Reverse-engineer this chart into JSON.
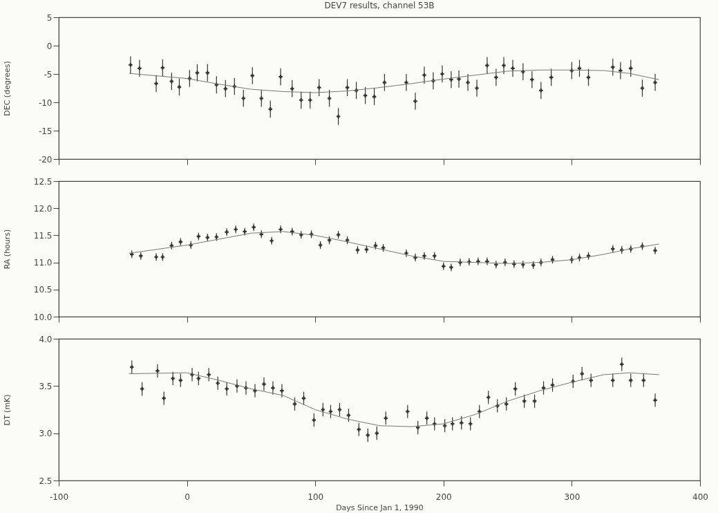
{
  "chart_data": [
    {
      "type": "scatter",
      "title": "DEV7 results, channel 53B",
      "ylabel": "DEC (degrees)",
      "xlim": [
        -100,
        400
      ],
      "xticks": [
        -100,
        0,
        100,
        200,
        300,
        400
      ],
      "ylim": [
        -20,
        5
      ],
      "yticks": [
        -20,
        -15,
        -10,
        -5,
        0,
        5
      ],
      "tick_labels": "y",
      "series": [
        {
          "marker": "cross",
          "color": "#333333",
          "x": [
            -44,
            -37,
            -24,
            -19,
            -12,
            -6,
            2,
            8,
            16,
            23,
            30,
            37,
            44,
            51,
            58,
            65,
            73,
            82,
            89,
            96,
            103,
            111,
            118,
            125,
            132,
            139,
            146,
            154,
            171,
            178,
            185,
            192,
            199,
            206,
            212,
            219,
            226,
            234,
            241,
            247,
            254,
            262,
            269,
            276,
            284,
            300,
            306,
            313,
            332,
            338,
            346,
            355,
            365
          ],
          "values": [
            -3.4,
            -4.0,
            -6.7,
            -3.9,
            -6.3,
            -7.3,
            -5.8,
            -4.8,
            -4.8,
            -6.9,
            -7.6,
            -7.2,
            -9.3,
            -5.3,
            -9.3,
            -11.2,
            -5.5,
            -7.6,
            -9.6,
            -9.6,
            -7.4,
            -9.3,
            -12.5,
            -7.4,
            -7.9,
            -8.8,
            -9.0,
            -6.5,
            -6.5,
            -9.8,
            -5.2,
            -6.2,
            -5.0,
            -6.0,
            -5.9,
            -6.5,
            -7.5,
            -3.5,
            -5.6,
            -3.5,
            -4.0,
            -4.6,
            -6.0,
            -7.9,
            -5.6,
            -4.4,
            -4.0,
            -5.6,
            -3.8,
            -4.4,
            -4.0,
            -7.5,
            -6.5
          ],
          "errors": [
            1.5,
            1.5,
            1.5,
            1.5,
            1.5,
            1.5,
            1.5,
            1.5,
            1.5,
            1.5,
            1.5,
            1.5,
            1.5,
            1.5,
            1.5,
            1.5,
            1.5,
            1.5,
            1.5,
            1.5,
            1.5,
            1.5,
            1.5,
            1.5,
            1.5,
            1.5,
            1.5,
            1.5,
            1.5,
            1.5,
            1.5,
            1.5,
            1.5,
            1.5,
            1.5,
            1.5,
            1.5,
            1.5,
            1.5,
            1.5,
            1.5,
            1.5,
            1.5,
            1.5,
            1.5,
            1.5,
            1.5,
            1.5,
            1.5,
            1.5,
            1.5,
            1.5,
            1.5
          ]
        },
        {
          "type": "line",
          "color": "#777777",
          "x": [
            -45,
            0,
            25,
            50,
            75,
            100,
            125,
            150,
            175,
            200,
            225,
            250,
            275,
            300,
            325,
            345,
            368
          ],
          "values": [
            -4.9,
            -5.8,
            -6.8,
            -7.7,
            -8.1,
            -8.3,
            -8.0,
            -7.4,
            -6.7,
            -5.9,
            -5.2,
            -4.5,
            -4.3,
            -4.3,
            -4.4,
            -4.9,
            -6.0
          ]
        }
      ]
    },
    {
      "type": "scatter",
      "ylabel": "RA (hours)",
      "xlim": [
        -100,
        400
      ],
      "xticks": [
        -100,
        0,
        100,
        200,
        300,
        400
      ],
      "ylim": [
        10,
        12.5
      ],
      "yticks": [
        {
          "value": 10,
          "label": "10.0"
        },
        10.5,
        {
          "value": 11,
          "label": "11.0"
        },
        11.5,
        {
          "value": 12,
          "label": "12.0"
        },
        12.5
      ],
      "tick_labels": "y",
      "series": [
        {
          "marker": "cross",
          "color": "#333333",
          "x": [
            -43,
            -36,
            -24,
            -19,
            -12,
            -5,
            3,
            9,
            16,
            23,
            31,
            38,
            45,
            52,
            58,
            66,
            73,
            82,
            89,
            97,
            104,
            111,
            118,
            125,
            133,
            140,
            147,
            153,
            171,
            178,
            185,
            193,
            200,
            206,
            213,
            220,
            227,
            234,
            241,
            248,
            255,
            262,
            270,
            276,
            285,
            300,
            306,
            313,
            332,
            339,
            346,
            355,
            365
          ],
          "values": [
            11.15,
            11.12,
            11.1,
            11.1,
            11.31,
            11.38,
            11.32,
            11.48,
            11.46,
            11.47,
            11.56,
            11.61,
            11.57,
            11.65,
            11.52,
            11.4,
            11.61,
            11.57,
            11.51,
            11.52,
            11.32,
            11.41,
            11.51,
            11.41,
            11.23,
            11.24,
            11.31,
            11.27,
            11.17,
            11.09,
            11.12,
            11.12,
            10.93,
            10.91,
            11.0,
            11.01,
            11.02,
            11.02,
            10.96,
            11.0,
            10.97,
            10.96,
            10.95,
            11.0,
            11.05,
            11.05,
            11.09,
            11.12,
            11.25,
            11.23,
            11.25,
            11.3,
            11.22
          ],
          "errors": [
            0.07,
            0.07,
            0.07,
            0.07,
            0.07,
            0.07,
            0.07,
            0.07,
            0.07,
            0.07,
            0.07,
            0.07,
            0.07,
            0.07,
            0.07,
            0.07,
            0.07,
            0.07,
            0.07,
            0.07,
            0.07,
            0.07,
            0.07,
            0.07,
            0.07,
            0.07,
            0.07,
            0.07,
            0.07,
            0.07,
            0.07,
            0.07,
            0.07,
            0.07,
            0.07,
            0.07,
            0.07,
            0.07,
            0.07,
            0.07,
            0.07,
            0.07,
            0.07,
            0.07,
            0.07,
            0.07,
            0.07,
            0.07,
            0.07,
            0.07,
            0.07,
            0.07,
            0.07
          ]
        },
        {
          "type": "line",
          "color": "#777777",
          "x": [
            -45,
            0,
            25,
            50,
            75,
            100,
            125,
            150,
            175,
            200,
            225,
            250,
            275,
            300,
            325,
            345,
            368
          ],
          "values": [
            11.17,
            11.32,
            11.43,
            11.54,
            11.57,
            11.5,
            11.38,
            11.25,
            11.12,
            11.02,
            11.0,
            10.98,
            11.0,
            11.05,
            11.15,
            11.25,
            11.34
          ]
        }
      ]
    },
    {
      "type": "scatter",
      "xlabel": "Days Since Jan 1, 1990",
      "ylabel": "DT (mK)",
      "xlim": [
        -100,
        400
      ],
      "xticks": [
        -100,
        0,
        100,
        200,
        300,
        400
      ],
      "ylim": [
        2.5,
        4
      ],
      "yticks": [
        2.5,
        {
          "value": 3,
          "label": "3.0"
        },
        3.5,
        {
          "value": 4,
          "label": "4.0"
        }
      ],
      "series": [
        {
          "marker": "cross",
          "color": "#333333",
          "x": [
            -43,
            -35,
            -23,
            -18,
            -11,
            -5,
            4,
            9,
            17,
            24,
            31,
            39,
            46,
            53,
            60,
            67,
            74,
            84,
            91,
            99,
            106,
            112,
            119,
            126,
            134,
            141,
            148,
            155,
            172,
            180,
            187,
            193,
            201,
            207,
            214,
            221,
            228,
            235,
            242,
            249,
            256,
            263,
            271,
            278,
            285,
            301,
            308,
            315,
            332,
            339,
            346,
            356,
            365
          ],
          "values": [
            3.7,
            3.47,
            3.66,
            3.37,
            3.58,
            3.56,
            3.62,
            3.58,
            3.62,
            3.53,
            3.47,
            3.5,
            3.48,
            3.45,
            3.52,
            3.48,
            3.45,
            3.31,
            3.37,
            3.14,
            3.25,
            3.23,
            3.25,
            3.19,
            3.04,
            2.98,
            3.0,
            3.16,
            3.23,
            3.06,
            3.16,
            3.1,
            3.08,
            3.1,
            3.11,
            3.1,
            3.23,
            3.38,
            3.29,
            3.31,
            3.47,
            3.34,
            3.34,
            3.48,
            3.51,
            3.55,
            3.63,
            3.56,
            3.56,
            3.73,
            3.56,
            3.56,
            3.35
          ],
          "errors": [
            0.07,
            0.07,
            0.07,
            0.07,
            0.07,
            0.07,
            0.07,
            0.07,
            0.07,
            0.07,
            0.07,
            0.07,
            0.07,
            0.07,
            0.07,
            0.07,
            0.07,
            0.07,
            0.07,
            0.07,
            0.07,
            0.07,
            0.07,
            0.07,
            0.07,
            0.07,
            0.07,
            0.07,
            0.07,
            0.07,
            0.07,
            0.07,
            0.07,
            0.07,
            0.07,
            0.07,
            0.07,
            0.07,
            0.07,
            0.07,
            0.07,
            0.07,
            0.07,
            0.07,
            0.07,
            0.07,
            0.07,
            0.07,
            0.07,
            0.07,
            0.07,
            0.07,
            0.07
          ]
        },
        {
          "type": "line",
          "color": "#777777",
          "x": [
            -45,
            0,
            25,
            50,
            75,
            100,
            125,
            150,
            175,
            200,
            225,
            250,
            275,
            300,
            325,
            345,
            368
          ],
          "values": [
            3.63,
            3.64,
            3.56,
            3.47,
            3.4,
            3.25,
            3.15,
            3.08,
            3.07,
            3.1,
            3.2,
            3.34,
            3.45,
            3.54,
            3.62,
            3.64,
            3.62
          ]
        }
      ]
    }
  ]
}
